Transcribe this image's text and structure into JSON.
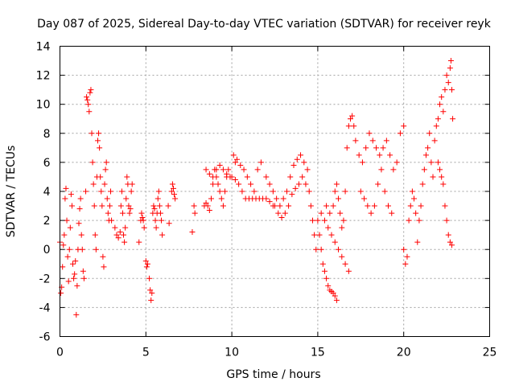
{
  "chart_data": {
    "type": "scatter",
    "title": "Day 087 of 2025, Sidereal Day-to-day VTEC variation (SDTVAR) for receiver reyk",
    "xlabel": "GPS time / hours",
    "ylabel": "SDTVAR / TECUs",
    "xlim": [
      0,
      25
    ],
    "ylim": [
      -6,
      14
    ],
    "xticks": [
      "0",
      "5",
      "10",
      "15",
      "20",
      "25"
    ],
    "yticks": [
      "-6",
      "-4",
      "-2",
      "0",
      "2",
      "4",
      "6",
      "8",
      "10",
      "12",
      "14"
    ],
    "grid": true,
    "marker": "plus",
    "color": "#ff0000",
    "series": [
      {
        "name": "SDTVAR",
        "points": [
          [
            0.0,
            0.5
          ],
          [
            0.05,
            -3.0
          ],
          [
            0.1,
            -2.6
          ],
          [
            0.15,
            -1.2
          ],
          [
            0.2,
            0.3
          ],
          [
            0.25,
            1.0
          ],
          [
            0.3,
            3.5
          ],
          [
            0.35,
            4.2
          ],
          [
            0.4,
            2.0
          ],
          [
            0.45,
            -0.5
          ],
          [
            0.5,
            -2.2
          ],
          [
            0.55,
            0.0
          ],
          [
            0.6,
            1.5
          ],
          [
            0.65,
            3.8
          ],
          [
            0.7,
            3.0
          ],
          [
            0.75,
            -1.0
          ],
          [
            0.8,
            -2.0
          ],
          [
            0.85,
            -1.7
          ],
          [
            0.9,
            -0.8
          ],
          [
            0.95,
            -4.5
          ],
          [
            1.0,
            -2.5
          ],
          [
            1.05,
            0.0
          ],
          [
            1.1,
            1.8
          ],
          [
            1.15,
            2.8
          ],
          [
            1.2,
            3.5
          ],
          [
            1.25,
            1.0
          ],
          [
            1.3,
            0.0
          ],
          [
            1.35,
            -1.5
          ],
          [
            1.4,
            -2.0
          ],
          [
            1.5,
            4.0
          ],
          [
            1.55,
            10.5
          ],
          [
            1.6,
            10.3
          ],
          [
            1.65,
            10.0
          ],
          [
            1.7,
            9.5
          ],
          [
            1.75,
            10.8
          ],
          [
            1.8,
            11.0
          ],
          [
            1.85,
            8.0
          ],
          [
            1.9,
            6.0
          ],
          [
            1.95,
            4.5
          ],
          [
            2.0,
            3.0
          ],
          [
            2.05,
            1.0
          ],
          [
            2.1,
            0.0
          ],
          [
            2.15,
            5.0
          ],
          [
            2.2,
            7.5
          ],
          [
            2.25,
            8.0
          ],
          [
            2.3,
            7.0
          ],
          [
            2.35,
            5.0
          ],
          [
            2.4,
            4.0
          ],
          [
            2.45,
            3.0
          ],
          [
            2.5,
            -0.5
          ],
          [
            2.55,
            -1.2
          ],
          [
            2.6,
            4.5
          ],
          [
            2.65,
            5.5
          ],
          [
            2.7,
            6.0
          ],
          [
            2.75,
            3.5
          ],
          [
            2.8,
            2.5
          ],
          [
            2.85,
            2.0
          ],
          [
            2.9,
            3.0
          ],
          [
            2.95,
            4.0
          ],
          [
            3.0,
            2.0
          ],
          [
            3.2,
            1.5
          ],
          [
            3.3,
            1.0
          ],
          [
            3.4,
            0.8
          ],
          [
            3.5,
            1.2
          ],
          [
            3.55,
            3.0
          ],
          [
            3.6,
            4.0
          ],
          [
            3.65,
            2.5
          ],
          [
            3.7,
            1.0
          ],
          [
            3.75,
            0.5
          ],
          [
            3.8,
            1.5
          ],
          [
            3.85,
            3.5
          ],
          [
            3.9,
            5.0
          ],
          [
            3.95,
            4.5
          ],
          [
            4.0,
            3.0
          ],
          [
            4.05,
            2.5
          ],
          [
            4.1,
            2.8
          ],
          [
            4.15,
            4.0
          ],
          [
            4.2,
            4.5
          ],
          [
            4.6,
            0.5
          ],
          [
            4.7,
            2.0
          ],
          [
            4.75,
            2.5
          ],
          [
            4.8,
            2.2
          ],
          [
            4.85,
            2.0
          ],
          [
            4.9,
            1.5
          ],
          [
            5.0,
            -0.8
          ],
          [
            5.05,
            -1.2
          ],
          [
            5.1,
            -1.0
          ],
          [
            5.2,
            -2.0
          ],
          [
            5.25,
            -2.8
          ],
          [
            5.3,
            -3.5
          ],
          [
            5.35,
            -3.0
          ],
          [
            5.4,
            2.5
          ],
          [
            5.45,
            3.0
          ],
          [
            5.5,
            2.8
          ],
          [
            5.55,
            2.0
          ],
          [
            5.6,
            1.5
          ],
          [
            5.65,
            2.5
          ],
          [
            5.7,
            3.5
          ],
          [
            5.75,
            4.0
          ],
          [
            5.8,
            3.0
          ],
          [
            5.85,
            2.5
          ],
          [
            5.9,
            2.0
          ],
          [
            5.95,
            1.0
          ],
          [
            6.3,
            3.0
          ],
          [
            6.35,
            1.8
          ],
          [
            6.5,
            4.0
          ],
          [
            6.55,
            4.5
          ],
          [
            6.6,
            4.2
          ],
          [
            6.65,
            3.8
          ],
          [
            6.7,
            3.5
          ],
          [
            7.7,
            1.2
          ],
          [
            7.8,
            3.0
          ],
          [
            7.85,
            2.5
          ],
          [
            8.4,
            3.0
          ],
          [
            8.5,
            3.2
          ],
          [
            8.6,
            3.0
          ],
          [
            8.7,
            2.7
          ],
          [
            8.8,
            3.5
          ],
          [
            8.9,
            4.5
          ],
          [
            9.0,
            5.5
          ],
          [
            9.1,
            5.0
          ],
          [
            9.2,
            4.5
          ],
          [
            9.3,
            4.0
          ],
          [
            9.4,
            3.5
          ],
          [
            9.5,
            3.0
          ],
          [
            9.6,
            4.0
          ],
          [
            9.7,
            5.0
          ],
          [
            9.8,
            5.5
          ],
          [
            8.5,
            5.5
          ],
          [
            8.7,
            5.2
          ],
          [
            8.9,
            5.0
          ],
          [
            9.1,
            5.5
          ],
          [
            9.3,
            5.8
          ],
          [
            9.5,
            5.5
          ],
          [
            9.7,
            5.2
          ],
          [
            9.9,
            5.0
          ],
          [
            10.1,
            6.5
          ],
          [
            10.2,
            6.0
          ],
          [
            10.3,
            6.2
          ],
          [
            10.5,
            5.8
          ],
          [
            10.7,
            5.5
          ],
          [
            10.9,
            5.0
          ],
          [
            11.1,
            4.5
          ],
          [
            11.3,
            4.0
          ],
          [
            11.5,
            5.5
          ],
          [
            11.7,
            6.0
          ],
          [
            10.0,
            5.0
          ],
          [
            10.2,
            4.8
          ],
          [
            10.4,
            4.5
          ],
          [
            10.6,
            4.0
          ],
          [
            10.8,
            3.5
          ],
          [
            11.0,
            3.5
          ],
          [
            11.2,
            3.5
          ],
          [
            11.4,
            3.5
          ],
          [
            11.6,
            3.5
          ],
          [
            11.8,
            3.5
          ],
          [
            12.0,
            3.5
          ],
          [
            12.2,
            3.3
          ],
          [
            12.4,
            3.0
          ],
          [
            12.0,
            5.0
          ],
          [
            12.2,
            4.5
          ],
          [
            12.4,
            4.0
          ],
          [
            12.6,
            3.5
          ],
          [
            12.8,
            3.0
          ],
          [
            13.0,
            3.5
          ],
          [
            13.2,
            4.0
          ],
          [
            13.4,
            5.0
          ],
          [
            13.6,
            5.8
          ],
          [
            13.8,
            6.2
          ],
          [
            14.0,
            6.5
          ],
          [
            14.2,
            6.0
          ],
          [
            14.4,
            5.5
          ],
          [
            12.5,
            3.0
          ],
          [
            12.7,
            2.5
          ],
          [
            12.9,
            2.2
          ],
          [
            13.1,
            2.5
          ],
          [
            13.3,
            3.0
          ],
          [
            13.5,
            3.8
          ],
          [
            13.7,
            4.2
          ],
          [
            13.9,
            4.5
          ],
          [
            14.1,
            5.0
          ],
          [
            14.3,
            4.5
          ],
          [
            14.5,
            4.0
          ],
          [
            14.6,
            3.0
          ],
          [
            14.7,
            2.0
          ],
          [
            14.8,
            1.0
          ],
          [
            14.9,
            0.0
          ],
          [
            15.0,
            2.0
          ],
          [
            15.1,
            1.0
          ],
          [
            15.2,
            0.0
          ],
          [
            15.3,
            -1.0
          ],
          [
            15.4,
            -1.5
          ],
          [
            15.5,
            -2.0
          ],
          [
            15.6,
            -2.5
          ],
          [
            15.7,
            -2.8
          ],
          [
            15.8,
            -2.9
          ],
          [
            15.9,
            -3.0
          ],
          [
            16.0,
            -3.2
          ],
          [
            16.1,
            -3.5
          ],
          [
            15.2,
            2.5
          ],
          [
            15.4,
            2.0
          ],
          [
            15.6,
            1.5
          ],
          [
            15.8,
            1.0
          ],
          [
            16.0,
            0.5
          ],
          [
            16.2,
            0.0
          ],
          [
            16.4,
            -0.5
          ],
          [
            16.6,
            -1.0
          ],
          [
            16.8,
            -1.5
          ],
          [
            15.5,
            3.0
          ],
          [
            15.7,
            2.5
          ],
          [
            15.9,
            3.0
          ],
          [
            16.0,
            4.0
          ],
          [
            16.1,
            4.5
          ],
          [
            16.2,
            3.5
          ],
          [
            16.3,
            2.5
          ],
          [
            16.4,
            1.5
          ],
          [
            16.5,
            2.0
          ],
          [
            16.6,
            4.0
          ],
          [
            16.7,
            7.0
          ],
          [
            16.8,
            8.5
          ],
          [
            16.9,
            9.0
          ],
          [
            17.0,
            9.2
          ],
          [
            17.1,
            8.5
          ],
          [
            17.2,
            7.5
          ],
          [
            17.4,
            6.5
          ],
          [
            17.6,
            6.0
          ],
          [
            17.8,
            7.0
          ],
          [
            18.0,
            8.0
          ],
          [
            18.2,
            7.5
          ],
          [
            18.4,
            7.0
          ],
          [
            18.6,
            6.5
          ],
          [
            18.8,
            7.0
          ],
          [
            19.0,
            7.5
          ],
          [
            19.2,
            6.5
          ],
          [
            19.4,
            5.5
          ],
          [
            19.6,
            6.0
          ],
          [
            19.8,
            8.0
          ],
          [
            20.0,
            8.5
          ],
          [
            17.5,
            4.0
          ],
          [
            17.7,
            3.5
          ],
          [
            17.9,
            3.0
          ],
          [
            18.1,
            2.5
          ],
          [
            18.3,
            3.0
          ],
          [
            18.5,
            4.5
          ],
          [
            18.7,
            5.5
          ],
          [
            18.9,
            4.0
          ],
          [
            19.1,
            3.0
          ],
          [
            19.3,
            2.5
          ],
          [
            20.0,
            0.0
          ],
          [
            20.1,
            -1.0
          ],
          [
            20.2,
            -0.5
          ],
          [
            20.3,
            2.0
          ],
          [
            20.4,
            3.0
          ],
          [
            20.5,
            4.0
          ],
          [
            20.6,
            3.5
          ],
          [
            20.7,
            2.5
          ],
          [
            20.8,
            0.5
          ],
          [
            20.9,
            2.0
          ],
          [
            21.0,
            3.0
          ],
          [
            21.1,
            4.5
          ],
          [
            21.2,
            5.5
          ],
          [
            21.3,
            6.5
          ],
          [
            21.4,
            7.0
          ],
          [
            21.5,
            8.0
          ],
          [
            21.6,
            6.0
          ],
          [
            21.7,
            5.0
          ],
          [
            21.8,
            7.5
          ],
          [
            21.9,
            8.5
          ],
          [
            22.0,
            9.0
          ],
          [
            22.1,
            10.0
          ],
          [
            22.2,
            10.5
          ],
          [
            22.3,
            9.5
          ],
          [
            22.4,
            11.0
          ],
          [
            22.5,
            12.0
          ],
          [
            22.6,
            11.5
          ],
          [
            22.7,
            12.5
          ],
          [
            22.75,
            13.0
          ],
          [
            22.8,
            11.0
          ],
          [
            22.85,
            9.0
          ],
          [
            22.0,
            6.0
          ],
          [
            22.1,
            5.5
          ],
          [
            22.2,
            5.0
          ],
          [
            22.3,
            4.5
          ],
          [
            22.4,
            3.0
          ],
          [
            22.5,
            2.0
          ],
          [
            22.6,
            1.0
          ],
          [
            22.7,
            0.5
          ],
          [
            22.8,
            0.3
          ]
        ]
      }
    ]
  }
}
